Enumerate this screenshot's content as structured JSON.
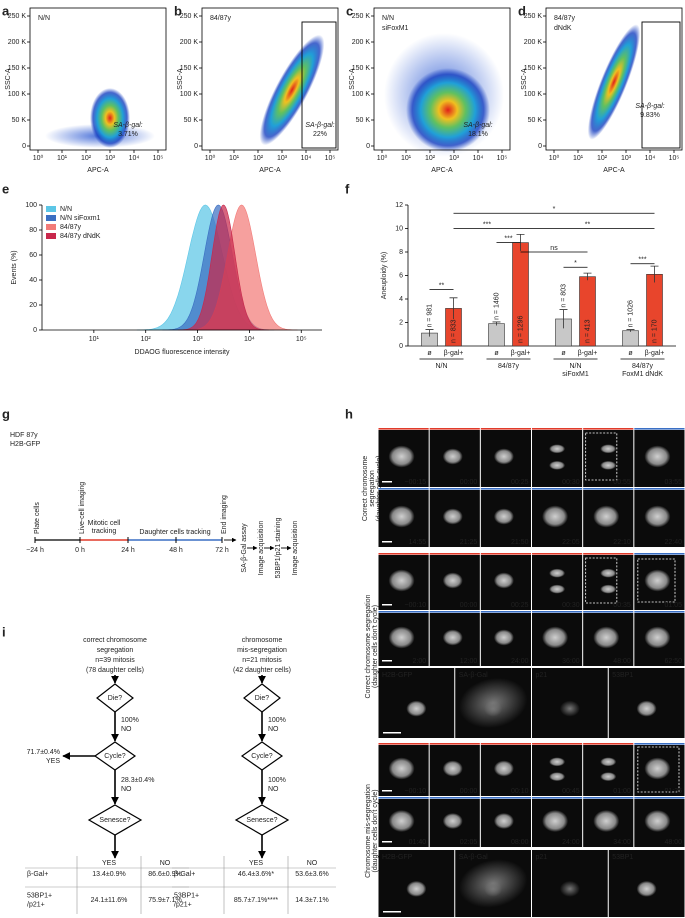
{
  "flow": {
    "x_label": "APC-A",
    "y_label": "SSC-A",
    "x_ticks": [
      "10⁰",
      "10¹",
      "10²",
      "10³",
      "10⁴",
      "10⁵"
    ],
    "y_ticks": [
      "0",
      "50 K",
      "100 K",
      "150 K",
      "200 K",
      "250 K"
    ],
    "panels": [
      {
        "letter": "a",
        "sample": [
          "N/N"
        ],
        "gate_label": "SA-β-gal:",
        "gate_value": "3.71%"
      },
      {
        "letter": "b",
        "sample": [
          "84/87y"
        ],
        "gate_label": "SA-β-gal:",
        "gate_value": "22%"
      },
      {
        "letter": "c",
        "sample": [
          "N/N",
          "siFoxM1"
        ],
        "gate_label": "SA-β-gal:",
        "gate_value": "18.1%"
      },
      {
        "letter": "d",
        "sample": [
          "84/87y",
          "dNdK"
        ],
        "gate_label": "SA-β-gal:",
        "gate_value": "9.83%"
      }
    ]
  },
  "panel_e": {
    "letter": "e",
    "y_label": "Events (%)",
    "x_label": "DDAOG fluorescence intensity",
    "ylim": [
      0,
      100
    ],
    "yticks": [
      0,
      20,
      40,
      60,
      80,
      100
    ],
    "x_ticks": [
      "10¹",
      "10²",
      "10³",
      "10⁴",
      "10⁵"
    ],
    "legend": [
      {
        "name": "N/N",
        "color": "#5cc6e6"
      },
      {
        "name": "N/N siFoxm1",
        "color": "#3b6fc2"
      },
      {
        "name": "84/87y",
        "color": "#f27b78"
      },
      {
        "name": "84/87y dNdK",
        "color": "#c8284c"
      }
    ]
  },
  "panel_f": {
    "letter": "f",
    "y_label": "Aneuploidy (%)",
    "ylim": [
      0,
      12
    ],
    "yticks": [
      0,
      2,
      4,
      6,
      8,
      10,
      12
    ],
    "bar_labels": [
      "ø",
      "β-gal+",
      "ø",
      "β-gal+",
      "ø",
      "β-gal+",
      "ø",
      "β-gal+"
    ],
    "values": [
      1.1,
      3.2,
      1.9,
      8.8,
      2.3,
      5.9,
      1.3,
      6.1
    ],
    "errors": [
      0.3,
      0.9,
      0.15,
      0.7,
      0.8,
      0.3,
      0.1,
      0.7
    ],
    "n_labels": [
      "n = 981",
      "n = 833",
      "n = 1460",
      "n = 1296",
      "n = 803",
      "n = 413",
      "n = 1026",
      "n = 170"
    ],
    "colors": [
      "#c8c8c8",
      "#e8452c"
    ],
    "groups": [
      [
        "N/N"
      ],
      [
        "84/87y"
      ],
      [
        "N/N",
        "siFoxM1"
      ],
      [
        "84/87y",
        "FoxM1 dNdK"
      ]
    ],
    "significance": [
      "*",
      "***",
      "**",
      "***",
      "ns",
      "**",
      "*",
      "***"
    ]
  },
  "panel_g": {
    "letter": "g",
    "cells": [
      "HDF 87y",
      "H2B-GFP"
    ],
    "events": [
      "Plate cells",
      "Live-cell imaging",
      "End imaging"
    ],
    "phases": [
      [
        "Mitotic cell",
        "tracking"
      ],
      [
        "Daughter cells tracking"
      ]
    ],
    "times": [
      "−24 h",
      "0 h",
      "24 h",
      "48 h",
      "72 h"
    ],
    "steps": [
      "SA-β-Gal assay",
      "Image acquisition",
      "53BP1/p21 staining",
      "Image acquisition"
    ]
  },
  "panel_h": {
    "letter": "h",
    "sections": [
      {
        "side_label": [
          "Correct chromosome",
          "segregation",
          "(daughter cells cycle)"
        ],
        "rows": [
          [
            "−00:15",
            "00:00",
            "00:25",
            "00:30",
            "00:55",
            "03:55"
          ],
          [
            "14:55",
            "21:25",
            "21:50",
            "22:05",
            "22:10",
            "22:40"
          ]
        ]
      },
      {
        "side_label": [
          "Correct chromosome segregation",
          "(daughter cells don't cycle)"
        ],
        "rows": [
          [
            "−00:10",
            "00:00",
            "00:25",
            "00:30",
            "00:35",
            "01:05"
          ],
          [
            "2:00",
            "12:00",
            "24:00",
            "36:00",
            "48:00",
            "62:50"
          ]
        ],
        "stains": [
          "H2B-GFP",
          "SA-β-Gal",
          "p21",
          "53BP1"
        ]
      },
      {
        "side_label": [
          "Chromosome mis-segregation",
          "(daughter cells don't cycle)"
        ],
        "rows": [
          [
            "−00:10",
            "00:00",
            "00:10",
            "00:45",
            "01:00",
            "01:35"
          ],
          [
            "01:40",
            "02:05",
            "08:00",
            "24:00",
            "34:00",
            "48:00"
          ]
        ],
        "stains": [
          "H2B-GFP",
          "SA-β-Gal",
          "p21",
          "53BP1"
        ]
      }
    ]
  },
  "panel_i": {
    "letter": "i",
    "columns": [
      {
        "title": [
          "correct chromosome",
          "segregation"
        ],
        "n": [
          "n=39 mitosis",
          "(78 daughter cells)"
        ],
        "die": "Die?",
        "die_out": [
          "100%",
          "NO"
        ],
        "cycle": "Cycle?",
        "cycle_yes": [
          "71.7±0.4%",
          "YES"
        ],
        "cycle_no": [
          "28.3±0.4%",
          "NO"
        ],
        "senesce": "Senesce?",
        "header": [
          "YES",
          "NO"
        ],
        "rows": [
          {
            "label": [
              "β-Gal+"
            ],
            "cells": [
              "13.4±0.9%",
              "86.6±0.9%"
            ]
          },
          {
            "label": [
              "53BP1+",
              "/p21+"
            ],
            "cells": [
              "24.1±11.6%",
              "75.9±7.1%"
            ]
          }
        ]
      },
      {
        "title": [
          "chromosome",
          "mis-segregation"
        ],
        "n": [
          "n=21 mitosis",
          "(42 daughter cells)"
        ],
        "die": "Die?",
        "die_out": [
          "100%",
          "NO"
        ],
        "cycle": "Cycle?",
        "cycle_no": [
          "100%",
          "NO"
        ],
        "senesce": "Senesce?",
        "header": [
          "YES",
          "NO"
        ],
        "rows": [
          {
            "label": [
              "β-Gal+"
            ],
            "cells": [
              "46.4±3.6%*",
              "53.6±3.6%"
            ]
          },
          {
            "label": [
              "53BP1+",
              "/p21+"
            ],
            "cells": [
              "85.7±7.1%****",
              "14.3±7.1%"
            ]
          }
        ]
      }
    ]
  }
}
